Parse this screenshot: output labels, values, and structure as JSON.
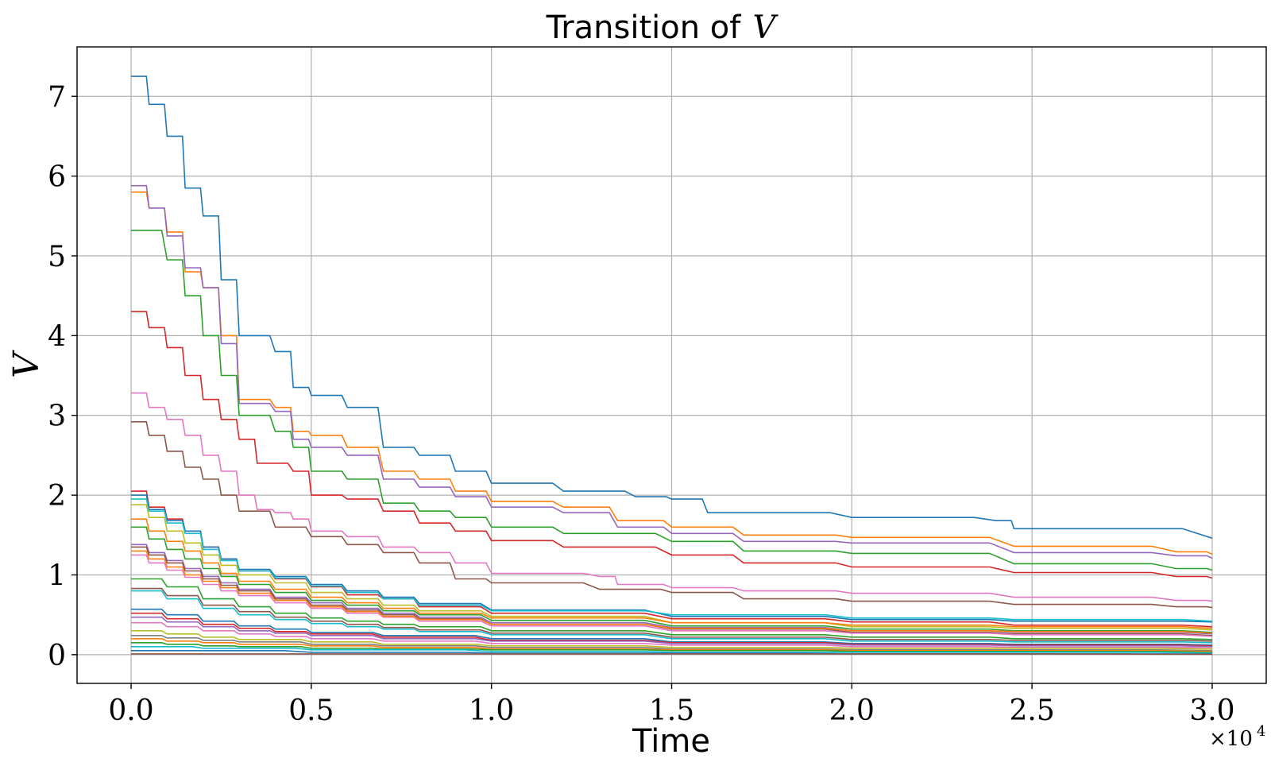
{
  "chart_data": {
    "type": "line",
    "title_text": "Transition of",
    "title_symbol": "V",
    "xlabel": "Time",
    "ylabel": "V",
    "x_offset_label": "×10",
    "x_offset_exponent": "4",
    "xlim": [
      -0.15,
      3.15
    ],
    "ylim": [
      -0.36,
      7.62
    ],
    "x_ticks": [
      0.0,
      0.5,
      1.0,
      1.5,
      2.0,
      2.5,
      3.0
    ],
    "x_tick_labels": [
      "0.0",
      "0.5",
      "1.0",
      "1.5",
      "2.0",
      "2.5",
      "3.0"
    ],
    "y_ticks": [
      0,
      1,
      2,
      3,
      4,
      5,
      6,
      7
    ],
    "y_tick_labels": [
      "0",
      "1",
      "2",
      "3",
      "4",
      "5",
      "6",
      "7"
    ],
    "grid": true,
    "series": [
      {
        "color": "#1f77b4",
        "x": [
          0,
          0.05,
          0.1,
          0.15,
          0.2,
          0.25,
          0.3,
          0.4,
          0.45,
          0.5,
          0.6,
          0.7,
          0.8,
          0.9,
          1.0,
          1.2,
          1.4,
          1.5,
          1.6,
          2.0,
          2.4,
          2.45,
          3.0
        ],
        "y": [
          7.25,
          6.9,
          6.5,
          5.85,
          5.5,
          4.7,
          4.0,
          3.8,
          3.35,
          3.25,
          3.1,
          2.6,
          2.5,
          2.3,
          2.15,
          2.05,
          1.98,
          1.95,
          1.78,
          1.72,
          1.68,
          1.58,
          1.46
        ]
      },
      {
        "color": "#ff7f0e",
        "x": [
          0,
          0.05,
          0.1,
          0.15,
          0.2,
          0.25,
          0.3,
          0.4,
          0.45,
          0.5,
          0.6,
          0.7,
          0.8,
          0.9,
          1.0,
          1.2,
          1.35,
          1.5,
          1.7,
          2.0,
          2.45,
          2.9,
          3.0
        ],
        "y": [
          5.8,
          5.6,
          5.3,
          4.8,
          4.6,
          4.0,
          3.2,
          3.1,
          2.8,
          2.75,
          2.6,
          2.3,
          2.2,
          2.05,
          1.92,
          1.85,
          1.68,
          1.6,
          1.5,
          1.47,
          1.36,
          1.29,
          1.26
        ]
      },
      {
        "color": "#9467bd",
        "x": [
          0,
          0.05,
          0.1,
          0.15,
          0.2,
          0.25,
          0.3,
          0.4,
          0.45,
          0.5,
          0.6,
          0.7,
          0.8,
          0.9,
          1.0,
          1.2,
          1.35,
          1.5,
          1.7,
          2.0,
          2.45,
          2.9,
          3.0
        ],
        "y": [
          5.88,
          5.6,
          5.25,
          4.85,
          4.6,
          3.9,
          3.15,
          3.05,
          2.7,
          2.6,
          2.5,
          2.2,
          2.1,
          1.98,
          1.85,
          1.78,
          1.6,
          1.52,
          1.42,
          1.4,
          1.28,
          1.24,
          1.21
        ]
      },
      {
        "color": "#2ca02c",
        "x": [
          0,
          0.1,
          0.15,
          0.2,
          0.25,
          0.3,
          0.4,
          0.45,
          0.5,
          0.6,
          0.7,
          0.8,
          0.9,
          1.0,
          1.2,
          1.5,
          1.7,
          2.0,
          2.45,
          2.9,
          3.0
        ],
        "y": [
          5.32,
          4.95,
          4.5,
          4.0,
          3.5,
          3.0,
          2.8,
          2.6,
          2.3,
          2.2,
          1.9,
          1.8,
          1.72,
          1.6,
          1.52,
          1.42,
          1.3,
          1.27,
          1.14,
          1.08,
          1.06
        ]
      },
      {
        "color": "#d62728",
        "x": [
          0,
          0.05,
          0.1,
          0.15,
          0.2,
          0.25,
          0.3,
          0.35,
          0.45,
          0.5,
          0.6,
          0.7,
          0.8,
          0.9,
          1.0,
          1.2,
          1.5,
          1.7,
          2.0,
          2.45,
          2.9,
          3.0
        ],
        "y": [
          4.3,
          4.1,
          3.85,
          3.5,
          3.2,
          2.95,
          2.7,
          2.4,
          2.3,
          2.0,
          1.95,
          1.8,
          1.65,
          1.55,
          1.43,
          1.35,
          1.25,
          1.15,
          1.1,
          1.03,
          0.98,
          0.96
        ]
      },
      {
        "color": "#e377c2",
        "x": [
          0,
          0.05,
          0.1,
          0.15,
          0.2,
          0.25,
          0.3,
          0.35,
          0.4,
          0.45,
          0.5,
          0.6,
          0.7,
          0.8,
          0.9,
          1.0,
          1.3,
          1.35,
          1.5,
          1.7,
          2.0,
          2.45,
          2.9,
          3.0
        ],
        "y": [
          3.28,
          3.1,
          2.95,
          2.75,
          2.5,
          2.3,
          2.0,
          1.82,
          1.78,
          1.7,
          1.55,
          1.48,
          1.35,
          1.28,
          1.15,
          1.02,
          0.98,
          0.88,
          0.84,
          0.8,
          0.77,
          0.72,
          0.68,
          0.67
        ]
      },
      {
        "color": "#8c564b",
        "x": [
          0,
          0.05,
          0.1,
          0.15,
          0.2,
          0.25,
          0.3,
          0.4,
          0.5,
          0.6,
          0.7,
          0.8,
          0.9,
          1.0,
          1.3,
          1.5,
          1.7,
          2.0,
          2.45,
          2.9,
          3.0
        ],
        "y": [
          2.92,
          2.75,
          2.55,
          2.35,
          2.2,
          2.0,
          1.8,
          1.6,
          1.48,
          1.38,
          1.28,
          1.15,
          0.95,
          0.9,
          0.82,
          0.78,
          0.7,
          0.67,
          0.63,
          0.6,
          0.59
        ]
      },
      {
        "color": "#d62728",
        "x": [
          0,
          0.05,
          0.1,
          0.15,
          0.2,
          0.25,
          0.3,
          0.4,
          0.5,
          0.6,
          0.7,
          0.8,
          1.0,
          1.5,
          2.0,
          2.45,
          3.0
        ],
        "y": [
          2.05,
          1.85,
          1.7,
          1.55,
          1.35,
          1.2,
          1.05,
          0.95,
          0.85,
          0.75,
          0.7,
          0.6,
          0.52,
          0.45,
          0.41,
          0.37,
          0.35
        ]
      },
      {
        "color": "#1f77b4",
        "x": [
          0,
          0.05,
          0.1,
          0.15,
          0.2,
          0.25,
          0.3,
          0.4,
          0.5,
          0.6,
          0.7,
          0.8,
          1.0,
          1.5,
          2.0,
          2.45,
          3.0
        ],
        "y": [
          2.0,
          1.82,
          1.68,
          1.55,
          1.35,
          1.2,
          1.07,
          0.98,
          0.88,
          0.8,
          0.72,
          0.64,
          0.56,
          0.48,
          0.44,
          0.42,
          0.41
        ]
      },
      {
        "color": "#17becf",
        "x": [
          0,
          0.05,
          0.1,
          0.15,
          0.2,
          0.25,
          0.3,
          0.4,
          0.5,
          0.6,
          0.7,
          0.8,
          1.0,
          1.5,
          2.0,
          2.45,
          3.0
        ],
        "y": [
          1.95,
          1.8,
          1.65,
          1.52,
          1.32,
          1.18,
          1.05,
          0.96,
          0.86,
          0.78,
          0.7,
          0.62,
          0.55,
          0.5,
          0.46,
          0.44,
          0.42
        ]
      },
      {
        "color": "#bcbd22",
        "x": [
          0,
          0.05,
          0.1,
          0.15,
          0.2,
          0.25,
          0.3,
          0.4,
          0.5,
          0.6,
          0.7,
          0.8,
          1.0,
          1.5,
          2.0,
          2.45,
          3.0
        ],
        "y": [
          1.88,
          1.72,
          1.55,
          1.4,
          1.25,
          1.12,
          1.0,
          0.9,
          0.78,
          0.7,
          0.62,
          0.55,
          0.48,
          0.4,
          0.35,
          0.33,
          0.31
        ]
      },
      {
        "color": "#ff7f0e",
        "x": [
          0,
          0.05,
          0.1,
          0.15,
          0.2,
          0.25,
          0.3,
          0.4,
          0.5,
          0.6,
          0.7,
          0.8,
          1.0,
          1.5,
          2.0,
          2.45,
          3.0
        ],
        "y": [
          1.7,
          1.55,
          1.42,
          1.3,
          1.15,
          1.02,
          0.92,
          0.82,
          0.72,
          0.65,
          0.58,
          0.52,
          0.46,
          0.4,
          0.37,
          0.35,
          0.33
        ]
      },
      {
        "color": "#2ca02c",
        "x": [
          0,
          0.05,
          0.1,
          0.15,
          0.2,
          0.25,
          0.3,
          0.4,
          0.5,
          0.6,
          0.7,
          0.8,
          1.0,
          1.5,
          2.0,
          2.45,
          3.0
        ],
        "y": [
          1.6,
          1.45,
          1.32,
          1.2,
          1.08,
          0.98,
          0.88,
          0.78,
          0.68,
          0.62,
          0.55,
          0.5,
          0.43,
          0.36,
          0.32,
          0.3,
          0.28
        ]
      },
      {
        "color": "#9467bd",
        "x": [
          0,
          0.05,
          0.1,
          0.15,
          0.2,
          0.25,
          0.3,
          0.4,
          0.5,
          0.6,
          0.7,
          0.8,
          1.0,
          1.5,
          2.0,
          2.45,
          3.0
        ],
        "y": [
          1.38,
          1.28,
          1.18,
          1.08,
          0.98,
          0.9,
          0.82,
          0.72,
          0.65,
          0.58,
          0.52,
          0.47,
          0.4,
          0.34,
          0.3,
          0.28,
          0.26
        ]
      },
      {
        "color": "#8c564b",
        "x": [
          0,
          0.05,
          0.1,
          0.15,
          0.2,
          0.25,
          0.3,
          0.4,
          0.5,
          0.6,
          0.7,
          0.8,
          1.0,
          1.5,
          2.0,
          2.45,
          3.0
        ],
        "y": [
          1.35,
          1.25,
          1.15,
          1.05,
          0.95,
          0.87,
          0.8,
          0.7,
          0.62,
          0.56,
          0.5,
          0.45,
          0.38,
          0.32,
          0.28,
          0.26,
          0.24
        ]
      },
      {
        "color": "#e377c2",
        "x": [
          0,
          0.05,
          0.1,
          0.15,
          0.2,
          0.25,
          0.3,
          0.4,
          0.5,
          0.6,
          0.7,
          0.8,
          1.0,
          1.5,
          2.0,
          2.45,
          3.0
        ],
        "y": [
          1.25,
          1.15,
          1.06,
          0.97,
          0.88,
          0.8,
          0.74,
          0.65,
          0.58,
          0.52,
          0.47,
          0.42,
          0.36,
          0.3,
          0.27,
          0.25,
          0.23
        ]
      },
      {
        "color": "#ff7f0e",
        "x": [
          0,
          0.05,
          0.1,
          0.15,
          0.2,
          0.25,
          0.3,
          0.4,
          0.5,
          0.6,
          0.7,
          0.8,
          1.0,
          1.5,
          2.0,
          2.45,
          3.0
        ],
        "y": [
          1.3,
          1.2,
          1.1,
          1.0,
          0.92,
          0.84,
          0.77,
          0.68,
          0.6,
          0.54,
          0.48,
          0.44,
          0.38,
          0.33,
          0.3,
          0.29,
          0.27
        ]
      },
      {
        "color": "#2ca02c",
        "x": [
          0,
          0.1,
          0.2,
          0.3,
          0.4,
          0.5,
          0.6,
          0.7,
          0.8,
          1.0,
          1.5,
          2.0,
          2.45,
          3.0
        ],
        "y": [
          0.95,
          0.85,
          0.7,
          0.6,
          0.52,
          0.46,
          0.42,
          0.38,
          0.35,
          0.3,
          0.25,
          0.22,
          0.2,
          0.19
        ]
      },
      {
        "color": "#17becf",
        "x": [
          0,
          0.1,
          0.2,
          0.3,
          0.4,
          0.5,
          0.6,
          0.7,
          0.8,
          1.0,
          1.5,
          2.0,
          2.45,
          3.0
        ],
        "y": [
          0.8,
          0.7,
          0.58,
          0.5,
          0.44,
          0.39,
          0.35,
          0.32,
          0.29,
          0.25,
          0.2,
          0.17,
          0.16,
          0.15
        ]
      },
      {
        "color": "#8c564b",
        "x": [
          0,
          0.1,
          0.2,
          0.3,
          0.4,
          0.5,
          0.6,
          0.7,
          0.8,
          1.0,
          1.5,
          2.0,
          2.45,
          3.0
        ],
        "y": [
          0.83,
          0.74,
          0.62,
          0.54,
          0.47,
          0.42,
          0.38,
          0.34,
          0.31,
          0.27,
          0.22,
          0.19,
          0.18,
          0.17
        ]
      },
      {
        "color": "#1f77b4",
        "x": [
          0,
          0.1,
          0.2,
          0.3,
          0.4,
          0.5,
          0.7,
          1.0,
          1.5,
          2.0,
          2.45,
          3.0
        ],
        "y": [
          0.57,
          0.5,
          0.42,
          0.36,
          0.32,
          0.28,
          0.24,
          0.2,
          0.16,
          0.14,
          0.13,
          0.12
        ]
      },
      {
        "color": "#d62728",
        "x": [
          0,
          0.1,
          0.2,
          0.3,
          0.4,
          0.5,
          0.7,
          1.0,
          1.5,
          2.0,
          2.45,
          3.0
        ],
        "y": [
          0.52,
          0.45,
          0.38,
          0.33,
          0.29,
          0.26,
          0.22,
          0.18,
          0.15,
          0.13,
          0.12,
          0.11
        ]
      },
      {
        "color": "#9467bd",
        "x": [
          0,
          0.1,
          0.2,
          0.3,
          0.4,
          0.5,
          0.7,
          1.0,
          1.5,
          2.0,
          2.45,
          3.0
        ],
        "y": [
          0.47,
          0.41,
          0.35,
          0.3,
          0.27,
          0.24,
          0.2,
          0.17,
          0.14,
          0.12,
          0.11,
          0.1
        ]
      },
      {
        "color": "#e377c2",
        "x": [
          0,
          0.1,
          0.2,
          0.3,
          0.4,
          0.5,
          0.7,
          1.0,
          1.5,
          2.0,
          2.45,
          3.0
        ],
        "y": [
          0.4,
          0.35,
          0.3,
          0.26,
          0.23,
          0.2,
          0.17,
          0.14,
          0.12,
          0.1,
          0.09,
          0.09
        ]
      },
      {
        "color": "#bcbd22",
        "x": [
          0,
          0.1,
          0.2,
          0.3,
          0.5,
          0.7,
          1.0,
          1.5,
          2.0,
          3.0
        ],
        "y": [
          0.3,
          0.26,
          0.22,
          0.19,
          0.16,
          0.13,
          0.11,
          0.09,
          0.08,
          0.07
        ]
      },
      {
        "color": "#7f7f7f",
        "x": [
          0,
          0.1,
          0.2,
          0.3,
          0.5,
          0.7,
          1.0,
          1.5,
          2.0,
          3.0
        ],
        "y": [
          0.24,
          0.21,
          0.18,
          0.16,
          0.13,
          0.11,
          0.09,
          0.07,
          0.06,
          0.05
        ]
      },
      {
        "color": "#ff7f0e",
        "x": [
          0,
          0.1,
          0.2,
          0.3,
          0.5,
          0.7,
          1.0,
          1.5,
          2.0,
          3.0
        ],
        "y": [
          0.2,
          0.17,
          0.15,
          0.13,
          0.11,
          0.09,
          0.07,
          0.06,
          0.05,
          0.04
        ]
      },
      {
        "color": "#2ca02c",
        "x": [
          0,
          0.1,
          0.2,
          0.3,
          0.5,
          0.7,
          1.0,
          1.5,
          2.0,
          3.0
        ],
        "y": [
          0.15,
          0.13,
          0.11,
          0.1,
          0.08,
          0.07,
          0.06,
          0.05,
          0.04,
          0.03
        ]
      },
      {
        "color": "#17becf",
        "x": [
          0,
          0.2,
          0.5,
          1.0,
          1.5,
          2.0,
          3.0
        ],
        "y": [
          0.1,
          0.08,
          0.06,
          0.04,
          0.03,
          0.03,
          0.02
        ]
      },
      {
        "color": "#1f77b4",
        "x": [
          0,
          0.5,
          1.0,
          2.0,
          3.0
        ],
        "y": [
          0.05,
          0.03,
          0.02,
          0.01,
          0.01
        ]
      },
      {
        "color": "#8c564b",
        "x": [
          0,
          3.0
        ],
        "y": [
          0.01,
          0.005
        ]
      }
    ]
  }
}
